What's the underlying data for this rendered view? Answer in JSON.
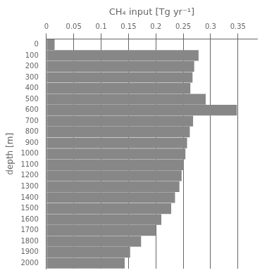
{
  "chart_data": {
    "type": "bar",
    "orientation": "horizontal",
    "xlabel": "CH₄ input [Tg yr⁻¹]",
    "ylabel": "depth [m]",
    "categories": [
      "0",
      "100",
      "200",
      "300",
      "400",
      "500",
      "600",
      "700",
      "800",
      "900",
      "1000",
      "1100",
      "1200",
      "1300",
      "1400",
      "1500",
      "1600",
      "1700",
      "1800",
      "1900",
      "2000"
    ],
    "values": [
      0.015,
      0.278,
      0.27,
      0.267,
      0.263,
      0.291,
      0.348,
      0.268,
      0.262,
      0.257,
      0.254,
      0.251,
      0.247,
      0.243,
      0.235,
      0.228,
      0.21,
      0.2,
      0.173,
      0.153,
      0.143
    ],
    "color": "#878787",
    "xlim": [
      0,
      0.385
    ],
    "xticks": [
      0,
      0.05,
      0.1,
      0.15,
      0.2,
      0.25,
      0.3,
      0.35
    ],
    "grid": "x"
  }
}
